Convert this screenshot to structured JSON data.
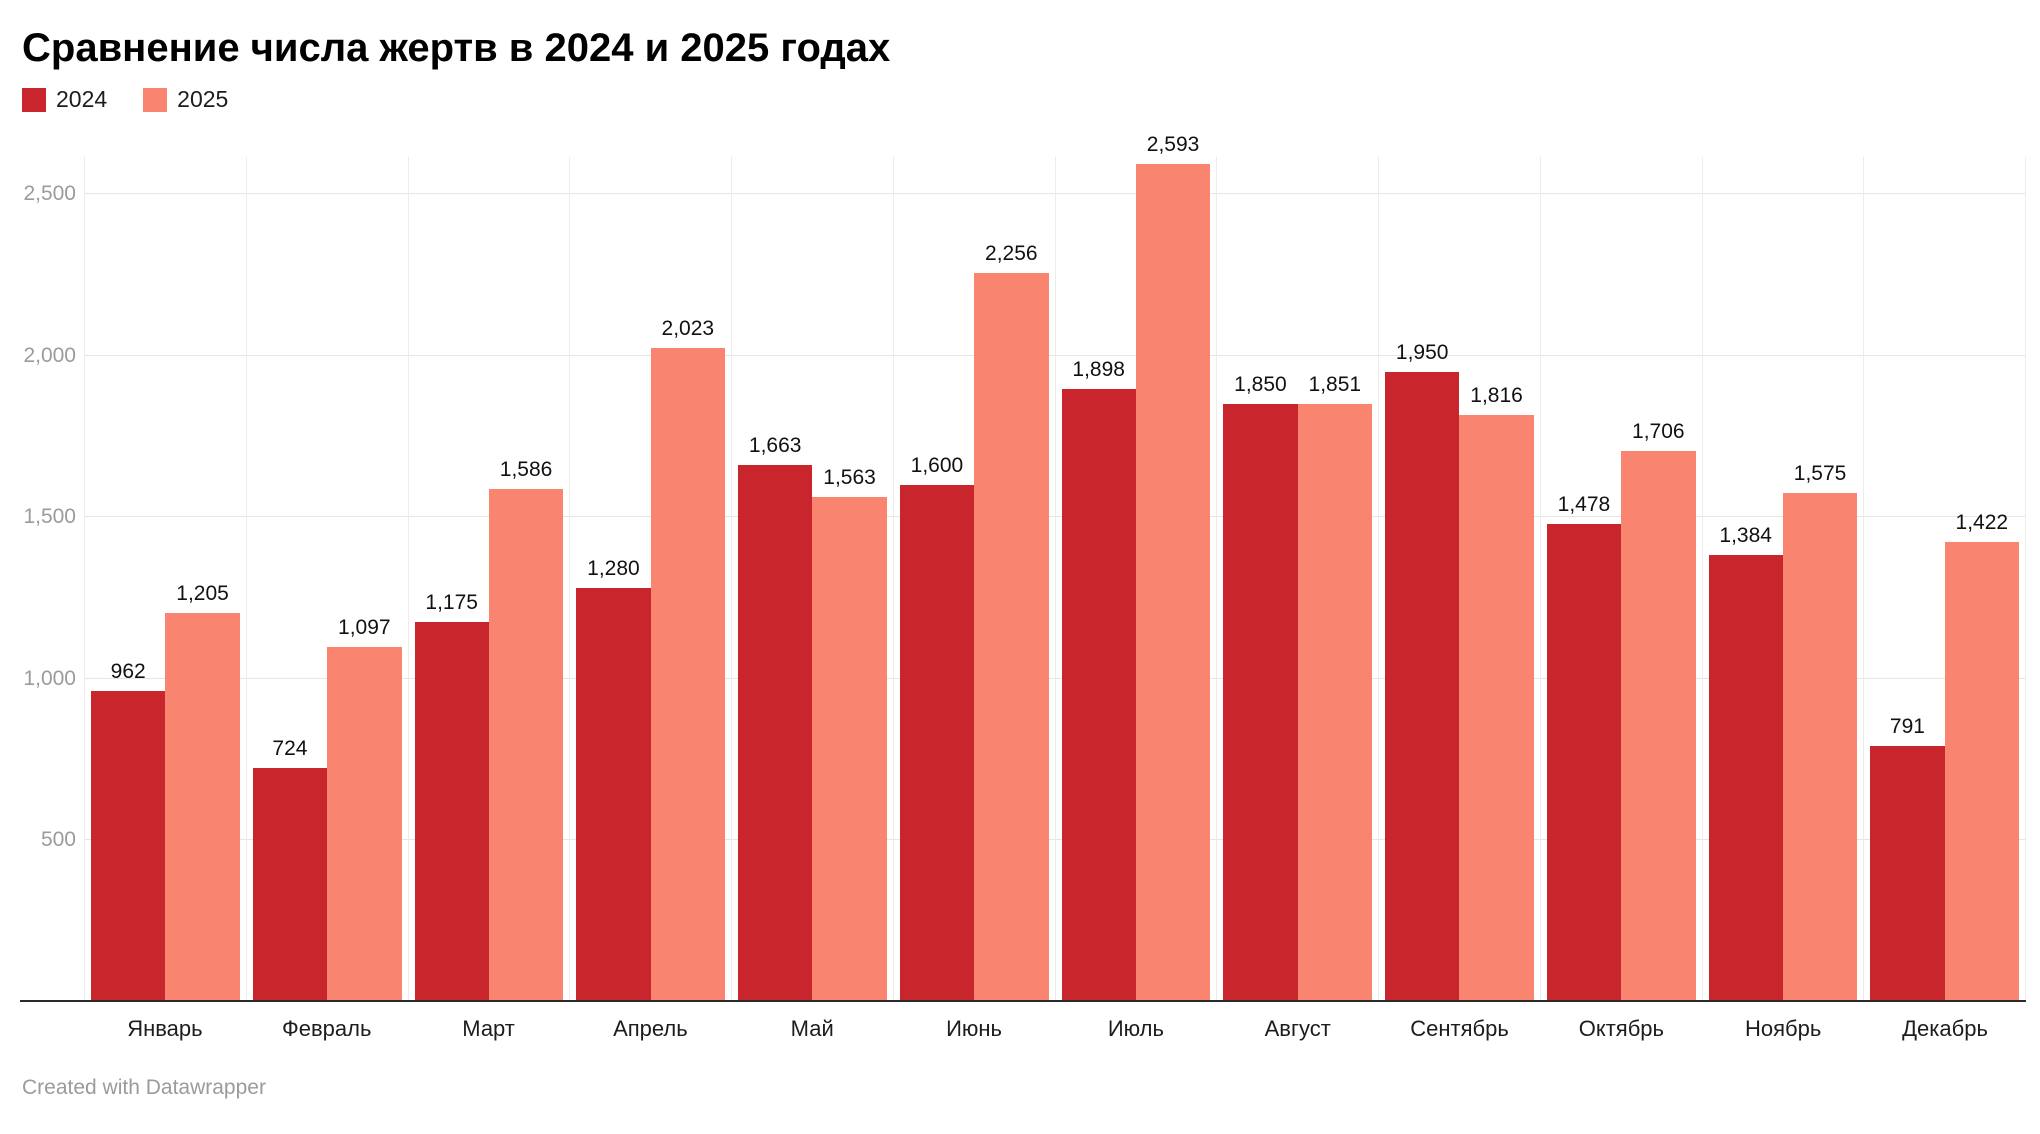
{
  "title": "Сравнение числа жертв в 2024 и 2025 годах",
  "legend": [
    {
      "label": "2024",
      "color": "#c8262c"
    },
    {
      "label": "2025",
      "color": "#f9846f"
    }
  ],
  "footer": {
    "credit": "Created with Datawrapper"
  },
  "chart_data": {
    "type": "bar",
    "title": "Сравнение числа жертв в 2024 и 2025 годах",
    "categories": [
      "Январь",
      "Февраль",
      "Март",
      "Апрель",
      "Май",
      "Июнь",
      "Июль",
      "Август",
      "Сентябрь",
      "Октябрь",
      "Ноябрь",
      "Декабрь"
    ],
    "series": [
      {
        "name": "2024",
        "color": "#c8262c",
        "values": [
          962,
          724,
          1175,
          1280,
          1663,
          1600,
          1898,
          1850,
          1950,
          1478,
          1384,
          791
        ]
      },
      {
        "name": "2025",
        "color": "#f9846f",
        "values": [
          1205,
          1097,
          1586,
          2023,
          1563,
          2256,
          2593,
          1851,
          1816,
          1706,
          1575,
          1422
        ]
      }
    ],
    "xlabel": "",
    "ylabel": "",
    "ylim": [
      0,
      2614
    ],
    "yticks": [
      500,
      1000,
      1500,
      2000,
      2500
    ],
    "grid": true,
    "legend_position": "top-left",
    "value_labels": true,
    "value_format": "thousands-comma"
  }
}
